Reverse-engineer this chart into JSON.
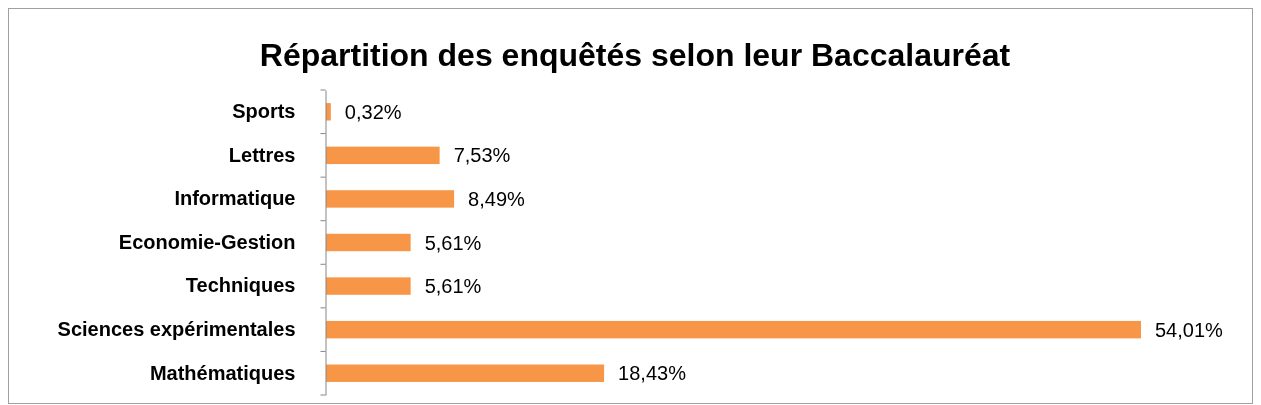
{
  "chart_data": {
    "type": "bar",
    "orientation": "horizontal",
    "title": "Répartition des enquêtés selon leur Baccalauréat",
    "categories": [
      "Sports",
      "Lettres",
      "Informatique",
      "Economie-Gestion",
      "Techniques",
      "Sciences expérimentales",
      "Mathématiques"
    ],
    "values": [
      0.32,
      7.53,
      8.49,
      5.61,
      5.61,
      54.01,
      18.43
    ],
    "value_labels": [
      "0,32%",
      "7,53%",
      "8,49%",
      "5,61%",
      "5,61%",
      "54,01%",
      "18,43%"
    ],
    "color": "#f79646"
  }
}
